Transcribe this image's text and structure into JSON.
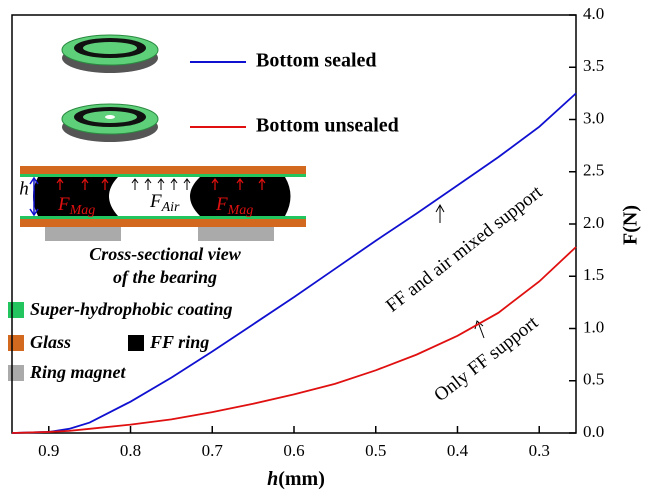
{
  "chart_data": {
    "type": "line",
    "x_label": {
      "italic": "h",
      "rest": "(mm)"
    },
    "y_label": "F(N)",
    "xlim": [
      0.945,
      0.255
    ],
    "ylim": [
      0,
      4
    ],
    "xticks": [
      0.9,
      0.8,
      0.7,
      0.6,
      0.5,
      0.4,
      0.3
    ],
    "yticks": [
      {
        "value": 0,
        "label": "0.0"
      },
      {
        "value": 0.5,
        "label": "0.5"
      },
      {
        "value": 1,
        "label": "1.0"
      },
      {
        "value": 1.5,
        "label": "1.5"
      },
      {
        "value": 2,
        "label": "2.0"
      },
      {
        "value": 2.5,
        "label": "2.5"
      },
      {
        "value": 3,
        "label": "3.0"
      },
      {
        "value": 3.5,
        "label": "3.5"
      },
      {
        "value": 4,
        "label": "4.0"
      }
    ],
    "x": [
      0.945,
      0.9,
      0.875,
      0.85,
      0.8,
      0.75,
      0.7,
      0.65,
      0.6,
      0.55,
      0.5,
      0.45,
      0.4,
      0.35,
      0.3,
      0.255
    ],
    "series": [
      {
        "name": "Bottom sealed",
        "color": "#1010d0",
        "values": [
          0,
          0.01,
          0.04,
          0.1,
          0.3,
          0.53,
          0.78,
          1.04,
          1.3,
          1.57,
          1.84,
          2.1,
          2.37,
          2.64,
          2.93,
          3.25
        ]
      },
      {
        "name": "Bottom unsealed",
        "color": "#e01010",
        "values": [
          0,
          0.01,
          0.02,
          0.04,
          0.08,
          0.13,
          0.2,
          0.28,
          0.37,
          0.47,
          0.6,
          0.75,
          0.93,
          1.15,
          1.45,
          1.78
        ]
      }
    ],
    "annotations": [
      "FF and air mixed support",
      "Only FF support"
    ],
    "inset": {
      "force_labels": [
        {
          "main": "F",
          "sub": "Mag"
        },
        {
          "main": "F",
          "sub": "Air"
        },
        {
          "main": "F",
          "sub": "Mag"
        }
      ],
      "gap_label": "h",
      "caption": [
        "Cross-sectional view",
        "of the bearing"
      ],
      "materials": [
        "Super-hydrophobic coating",
        "Glass",
        "FF ring",
        "Ring magnet"
      ]
    }
  }
}
